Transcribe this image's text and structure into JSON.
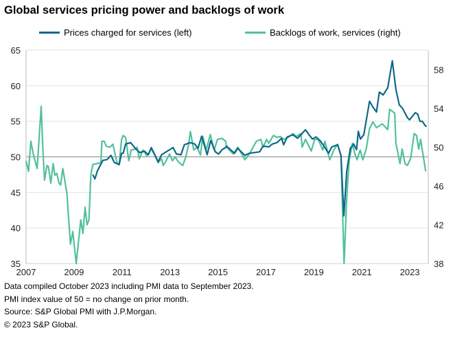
{
  "chart_data": {
    "type": "line",
    "title": "Global services pricing power and backlogs of work",
    "xlim": [
      2007,
      2023.77
    ],
    "x_ticks": [
      "2007",
      "2009",
      "2011",
      "2013",
      "2015",
      "2017",
      "2019",
      "2021",
      "2023"
    ],
    "y_left": {
      "ylim": [
        35,
        65
      ],
      "ticks": [
        35,
        40,
        45,
        50,
        55,
        60,
        65
      ]
    },
    "y_right": {
      "ylim": [
        38,
        60
      ],
      "ticks": [
        38,
        42,
        46,
        50,
        54,
        58
      ]
    },
    "grid": true,
    "legend_position": "top",
    "series": [
      {
        "name": "Prices charged for services (left)",
        "axis": "left",
        "color": "#0e6888",
        "points": [
          [
            2009.78,
            47.5
          ],
          [
            2009.87,
            46.9
          ],
          [
            2009.97,
            48
          ],
          [
            2010.2,
            49.5
          ],
          [
            2010.37,
            49.6
          ],
          [
            2010.54,
            50.2
          ],
          [
            2010.68,
            49.2
          ],
          [
            2010.88,
            48.9
          ],
          [
            2010.98,
            50.5
          ],
          [
            2011.05,
            50.5
          ],
          [
            2011.15,
            51.8
          ],
          [
            2011.36,
            52
          ],
          [
            2011.55,
            51.2
          ],
          [
            2011.74,
            50.6
          ],
          [
            2011.93,
            50.8
          ],
          [
            2012.1,
            50.3
          ],
          [
            2012.22,
            51.3
          ],
          [
            2012.51,
            49.3
          ],
          [
            2012.65,
            50.3
          ],
          [
            2012.89,
            50.8
          ],
          [
            2013.13,
            51.3
          ],
          [
            2013.27,
            50.4
          ],
          [
            2013.46,
            50.3
          ],
          [
            2013.6,
            51.7
          ],
          [
            2013.84,
            52
          ],
          [
            2014.03,
            51.8
          ],
          [
            2014.17,
            51.2
          ],
          [
            2014.32,
            52.9
          ],
          [
            2014.55,
            50.3
          ],
          [
            2014.7,
            52.3
          ],
          [
            2014.89,
            50.7
          ],
          [
            2015.03,
            50.4
          ],
          [
            2015.17,
            51
          ],
          [
            2015.32,
            51.3
          ],
          [
            2015.36,
            51.5
          ],
          [
            2015.69,
            50.5
          ],
          [
            2015.83,
            51.2
          ],
          [
            2016.12,
            50.2
          ],
          [
            2016.31,
            50.5
          ],
          [
            2016.74,
            50.7
          ],
          [
            2016.88,
            51.5
          ],
          [
            2017.12,
            51.4
          ],
          [
            2017.27,
            51.8
          ],
          [
            2017.46,
            52
          ],
          [
            2017.65,
            52.6
          ],
          [
            2017.74,
            51.7
          ],
          [
            2017.89,
            52.8
          ],
          [
            2018.13,
            53.1
          ],
          [
            2018.32,
            52.6
          ],
          [
            2018.51,
            53.3
          ],
          [
            2018.65,
            53.8
          ],
          [
            2018.8,
            53.1
          ],
          [
            2018.94,
            52.5
          ],
          [
            2019.09,
            52.8
          ],
          [
            2019.28,
            52.2
          ],
          [
            2019.42,
            51.5
          ],
          [
            2019.61,
            50.5
          ],
          [
            2019.75,
            51.4
          ],
          [
            2019.99,
            51.7
          ],
          [
            2020.13,
            50.2
          ],
          [
            2020.25,
            41.7
          ],
          [
            2020.37,
            48
          ],
          [
            2020.52,
            51.2
          ],
          [
            2020.66,
            51.8
          ],
          [
            2020.78,
            51
          ],
          [
            2020.85,
            53.6
          ],
          [
            2020.94,
            52.5
          ],
          [
            2021.08,
            53.1
          ],
          [
            2021.32,
            57.8
          ],
          [
            2021.46,
            57
          ],
          [
            2021.61,
            56.3
          ],
          [
            2021.73,
            59.1
          ],
          [
            2021.89,
            58.7
          ],
          [
            2022.08,
            59.7
          ],
          [
            2022.27,
            63.5
          ],
          [
            2022.42,
            59.5
          ],
          [
            2022.56,
            57.3
          ],
          [
            2022.7,
            56.8
          ],
          [
            2022.9,
            55.5
          ],
          [
            2022.99,
            55.2
          ],
          [
            2023.23,
            56.2
          ],
          [
            2023.33,
            56
          ],
          [
            2023.42,
            55
          ],
          [
            2023.52,
            55
          ],
          [
            2023.66,
            54.3
          ],
          [
            2023.7,
            54.3
          ]
        ]
      },
      {
        "name": "Backlogs of work, services (right)",
        "axis": "right",
        "color": "#52c09c",
        "points": [
          [
            2007.0,
            48.6
          ],
          [
            2007.1,
            47.5
          ],
          [
            2007.2,
            50.6
          ],
          [
            2007.3,
            49.3
          ],
          [
            2007.46,
            47.8
          ],
          [
            2007.63,
            54.2
          ],
          [
            2007.7,
            49.7
          ],
          [
            2007.77,
            46.6
          ],
          [
            2007.87,
            48.1
          ],
          [
            2007.93,
            48.0
          ],
          [
            2008.03,
            46.3
          ],
          [
            2008.13,
            48.3
          ],
          [
            2008.2,
            47.1
          ],
          [
            2008.28,
            47.3
          ],
          [
            2008.37,
            46.3
          ],
          [
            2008.44,
            46.1
          ],
          [
            2008.53,
            47.8
          ],
          [
            2008.7,
            45.3
          ],
          [
            2008.85,
            40.0
          ],
          [
            2008.95,
            41.3
          ],
          [
            2009.09,
            38.0
          ],
          [
            2009.28,
            42.5
          ],
          [
            2009.37,
            41.1
          ],
          [
            2009.46,
            43.8
          ],
          [
            2009.54,
            42.0
          ],
          [
            2009.62,
            42.5
          ],
          [
            2009.7,
            47.1
          ],
          [
            2009.78,
            48.2
          ],
          [
            2010.12,
            48.4
          ],
          [
            2010.16,
            50.6
          ],
          [
            2010.26,
            50.6
          ],
          [
            2010.34,
            50.1
          ],
          [
            2010.5,
            50.0
          ],
          [
            2010.62,
            50.3
          ],
          [
            2010.71,
            49.3
          ],
          [
            2010.79,
            48.4
          ],
          [
            2010.88,
            48.2
          ],
          [
            2010.98,
            50.8
          ],
          [
            2011.05,
            51.2
          ],
          [
            2011.15,
            51.0
          ],
          [
            2011.28,
            48.6
          ],
          [
            2011.38,
            49.7
          ],
          [
            2011.57,
            49.8
          ],
          [
            2011.63,
            50.0
          ],
          [
            2011.72,
            48.8
          ],
          [
            2011.88,
            49.7
          ],
          [
            2012.03,
            49.1
          ],
          [
            2012.22,
            49.8
          ],
          [
            2012.34,
            49.3
          ],
          [
            2012.51,
            48.4
          ],
          [
            2012.65,
            48.8
          ],
          [
            2012.72,
            48.1
          ],
          [
            2012.84,
            48.6
          ],
          [
            2012.98,
            49.3
          ],
          [
            2013.1,
            48.6
          ],
          [
            2013.22,
            49.0
          ],
          [
            2013.34,
            48.5
          ],
          [
            2013.53,
            48.1
          ],
          [
            2013.65,
            48.9
          ],
          [
            2013.77,
            50.2
          ],
          [
            2013.85,
            51.6
          ],
          [
            2013.99,
            49.7
          ],
          [
            2014.13,
            50.0
          ],
          [
            2014.27,
            49.2
          ],
          [
            2014.37,
            51.1
          ],
          [
            2014.51,
            49.7
          ],
          [
            2014.68,
            51.3
          ],
          [
            2014.84,
            49.7
          ],
          [
            2014.98,
            50.8
          ],
          [
            2015.17,
            50.9
          ],
          [
            2015.32,
            50.6
          ],
          [
            2015.36,
            50.0
          ],
          [
            2015.64,
            49.3
          ],
          [
            2015.83,
            50.0
          ],
          [
            2016.12,
            48.7
          ],
          [
            2016.31,
            49.3
          ],
          [
            2016.6,
            50.6
          ],
          [
            2016.79,
            50.8
          ],
          [
            2016.88,
            50.0
          ],
          [
            2017.03,
            50.8
          ],
          [
            2017.12,
            50.4
          ],
          [
            2017.31,
            51.2
          ],
          [
            2017.46,
            51.0
          ],
          [
            2017.6,
            51.1
          ],
          [
            2017.74,
            50.8
          ],
          [
            2017.93,
            51.0
          ],
          [
            2018.13,
            51.4
          ],
          [
            2018.27,
            51.1
          ],
          [
            2018.46,
            51.4
          ],
          [
            2018.51,
            50.0
          ],
          [
            2018.65,
            50.8
          ],
          [
            2018.89,
            49.6
          ],
          [
            2019.03,
            50.8
          ],
          [
            2019.18,
            50.8
          ],
          [
            2019.37,
            49.7
          ],
          [
            2019.46,
            50.6
          ],
          [
            2019.66,
            48.7
          ],
          [
            2019.85,
            49.8
          ],
          [
            2019.99,
            50.3
          ],
          [
            2020.13,
            49.1
          ],
          [
            2020.26,
            38.0
          ],
          [
            2020.37,
            44.8
          ],
          [
            2020.47,
            48.6
          ],
          [
            2020.61,
            50.4
          ],
          [
            2020.71,
            49.3
          ],
          [
            2020.8,
            48.7
          ],
          [
            2020.93,
            49.7
          ],
          [
            2021.04,
            48.7
          ],
          [
            2021.18,
            49.8
          ],
          [
            2021.32,
            51.9
          ],
          [
            2021.46,
            52.6
          ],
          [
            2021.61,
            52.0
          ],
          [
            2021.85,
            52.4
          ],
          [
            2022.08,
            51.8
          ],
          [
            2022.16,
            53.9
          ],
          [
            2022.37,
            53.5
          ],
          [
            2022.42,
            50.4
          ],
          [
            2022.59,
            48.3
          ],
          [
            2022.68,
            49.8
          ],
          [
            2022.8,
            48.3
          ],
          [
            2022.9,
            48.1
          ],
          [
            2023.04,
            48.9
          ],
          [
            2023.18,
            51.4
          ],
          [
            2023.28,
            51.2
          ],
          [
            2023.37,
            49.8
          ],
          [
            2023.45,
            50.8
          ],
          [
            2023.66,
            47.5
          ]
        ]
      }
    ]
  },
  "footnotes": [
    "Data compiled October 2023 including PMI data to September 2023.",
    "PMI index value of 50 = no change on prior month.",
    "Source: S&P Global PMI with J.P.Morgan.",
    "© 2023 S&P Global."
  ]
}
